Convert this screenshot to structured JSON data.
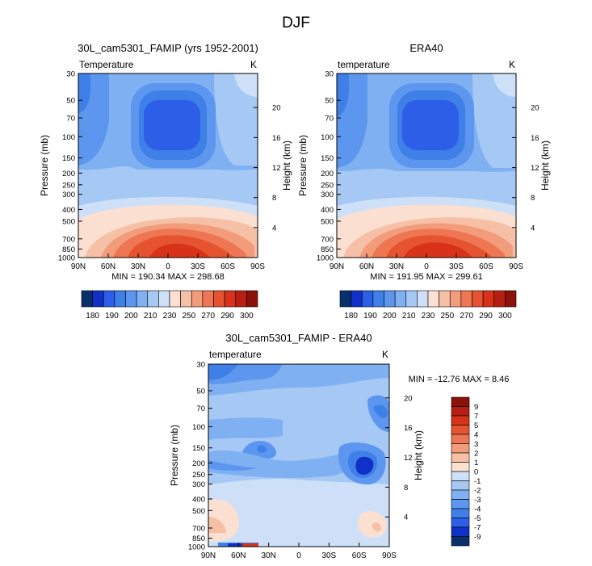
{
  "page": {
    "title": "DJF"
  },
  "chart_data": [
    {
      "type": "contour",
      "title": "30L_cam5301_FAMIP (yrs 1952-2001)",
      "left_label": "Temperature",
      "right_label": "K",
      "ylabel": "Pressure (mb)",
      "ylabel_right": "Height (km)",
      "x_ticks": [
        "90N",
        "60N",
        "30N",
        "0",
        "30S",
        "60S",
        "90S"
      ],
      "y_ticks": [
        "30",
        "50",
        "70",
        "100",
        "150",
        "200",
        "250",
        "300",
        "400",
        "500",
        "700",
        "850",
        "1000"
      ],
      "height_ticks": [
        "20",
        "16",
        "12",
        "8",
        "4"
      ],
      "stats": "MIN = 190.34   MAX = 298.68",
      "colorbar": {
        "orientation": "horizontal",
        "labels": [
          "180",
          "190",
          "200",
          "210",
          "230",
          "250",
          "270",
          "290",
          "300"
        ],
        "colors": [
          "#08306b",
          "#1030c8",
          "#2d5ee8",
          "#3f7fe8",
          "#5c96ee",
          "#7fb0f2",
          "#a6c8f5",
          "#cde0f8",
          "#fbe0d2",
          "#f6c0a6",
          "#f29c7c",
          "#ee7652",
          "#e65330",
          "#d8321a",
          "#b81f12",
          "#8c1108"
        ]
      }
    },
    {
      "type": "contour",
      "title": "ERA40",
      "left_label": "temperature",
      "right_label": "K",
      "ylabel": "Pressure (mb)",
      "ylabel_right": "Height (km)",
      "x_ticks": [
        "90N",
        "60N",
        "30N",
        "0",
        "30S",
        "60S",
        "90S"
      ],
      "y_ticks": [
        "30",
        "50",
        "70",
        "100",
        "150",
        "200",
        "250",
        "300",
        "400",
        "500",
        "700",
        "850",
        "1000"
      ],
      "height_ticks": [
        "20",
        "16",
        "12",
        "8",
        "4"
      ],
      "stats": "MIN = 191.95   MAX = 299.61",
      "colorbar": {
        "orientation": "horizontal",
        "labels": [
          "180",
          "190",
          "200",
          "210",
          "230",
          "250",
          "270",
          "290",
          "300"
        ],
        "colors": [
          "#08306b",
          "#1030c8",
          "#2d5ee8",
          "#3f7fe8",
          "#5c96ee",
          "#7fb0f2",
          "#a6c8f5",
          "#cde0f8",
          "#fbe0d2",
          "#f6c0a6",
          "#f29c7c",
          "#ee7652",
          "#e65330",
          "#d8321a",
          "#b81f12",
          "#8c1108"
        ]
      }
    },
    {
      "type": "contour",
      "title": "30L_cam5301_FAMIP - ERA40",
      "left_label": "temperature",
      "right_label": "K",
      "ylabel": "Pressure (mb)",
      "ylabel_right": "Height (km)",
      "x_ticks": [
        "90N",
        "60N",
        "30N",
        "0",
        "30S",
        "60S",
        "90S"
      ],
      "y_ticks": [
        "30",
        "50",
        "70",
        "100",
        "150",
        "200",
        "250",
        "300",
        "400",
        "500",
        "700",
        "850",
        "1000"
      ],
      "height_ticks": [
        "20",
        "16",
        "12",
        "8",
        "4"
      ],
      "stats": "MIN = -12.76  MAX =  8.46",
      "colorbar": {
        "orientation": "vertical",
        "labels": [
          "9",
          "7",
          "5",
          "4",
          "3",
          "2",
          "1",
          "0",
          "-1",
          "-2",
          "-3",
          "-4",
          "-5",
          "-7",
          "-9"
        ],
        "colors": [
          "#8c1108",
          "#b81f12",
          "#d8321a",
          "#e65330",
          "#ee7652",
          "#f29c7c",
          "#f6c0a6",
          "#fbe0d2",
          "#cde0f8",
          "#a6c8f5",
          "#7fb0f2",
          "#5c96ee",
          "#3f7fe8",
          "#2d5ee8",
          "#1030c8",
          "#08306b"
        ]
      }
    }
  ]
}
